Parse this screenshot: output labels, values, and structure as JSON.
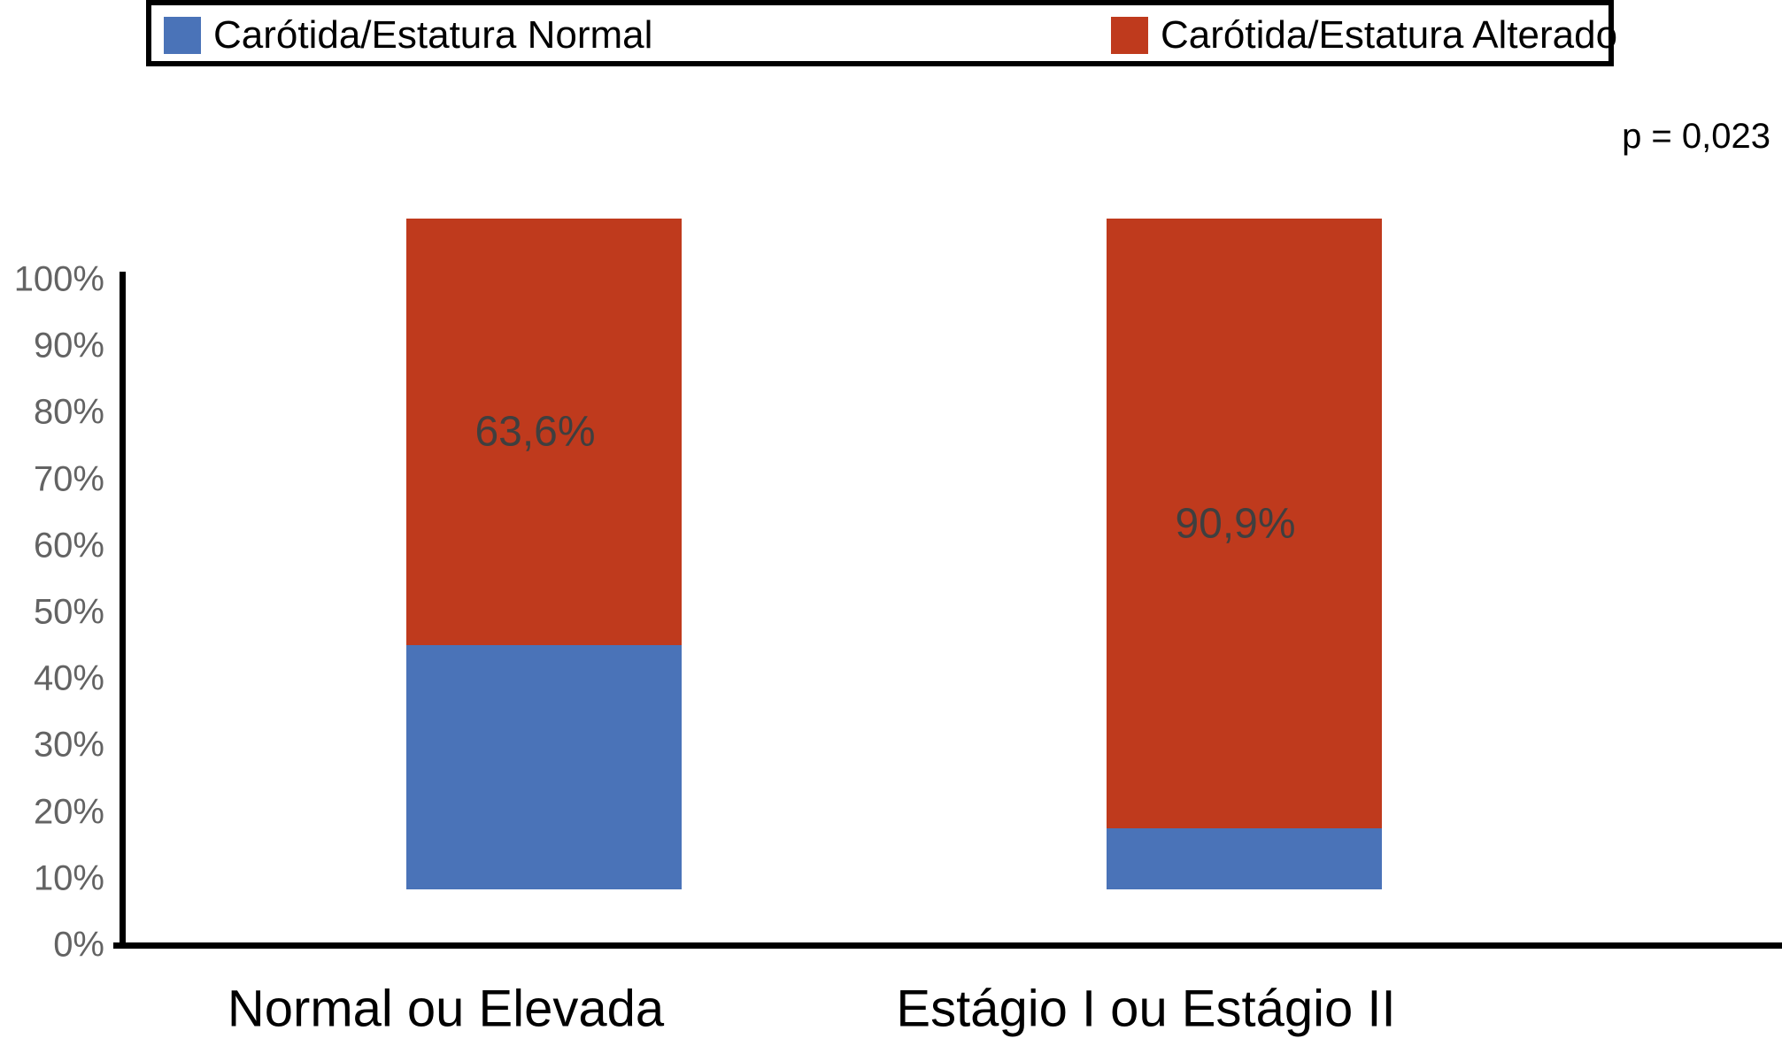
{
  "legend": {
    "items": [
      {
        "label": "Carótida/Estatura Normal",
        "color": "#4a73b8"
      },
      {
        "label": "Carótida/Estatura Alterado",
        "color": "#bf3a1d"
      }
    ]
  },
  "annotation": {
    "p_value": "p = 0,023"
  },
  "chart_data": {
    "type": "bar",
    "subtype": "stacked-100-percent",
    "title": "",
    "xlabel": "",
    "ylabel": "",
    "categories": [
      "Normal ou Elevada",
      "Estágio I ou Estágio II"
    ],
    "series": [
      {
        "name": "Carótida/Estatura Normal",
        "color": "#4a73b8",
        "values": [
          36.4,
          9.1
        ]
      },
      {
        "name": "Carótida/Estatura Alterado",
        "color": "#bf3a1d",
        "values": [
          63.6,
          90.9
        ],
        "data_labels": [
          "63,6%",
          "90,9%"
        ]
      }
    ],
    "ylim": [
      0,
      100
    ],
    "ytick_step": 10,
    "ytick_labels": [
      "0%",
      "10%",
      "20%",
      "30%",
      "40%",
      "50%",
      "60%",
      "70%",
      "80%",
      "90%",
      "100%"
    ],
    "legend_position": "top",
    "grid": false,
    "annotation": "p = 0,023"
  },
  "colors": {
    "series_normal": "#4a73b8",
    "series_alterado": "#bf3a1d",
    "tick_text": "#636363",
    "bar_label_text": "#3f3f3f",
    "axis": "#000000",
    "background": "#ffffff"
  }
}
